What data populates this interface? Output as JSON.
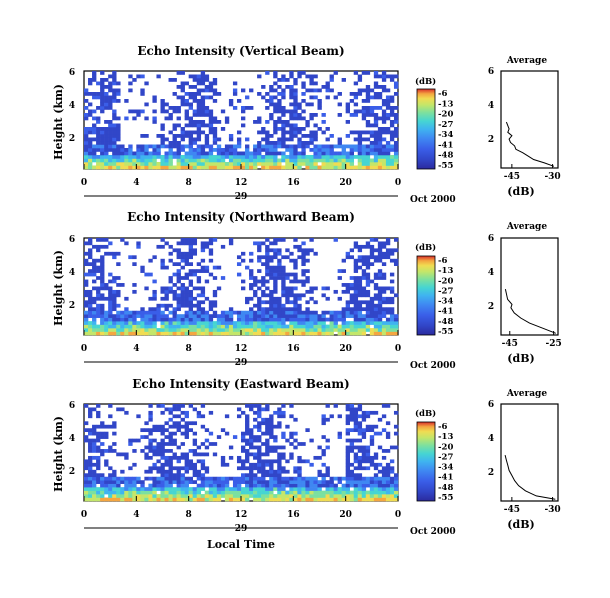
{
  "chart_data": [
    {
      "type": "heatmap",
      "title": "Echo Intensity (Vertical Beam)",
      "ylabel": "Height (km)",
      "xticks": [
        "0",
        "4",
        "8",
        "12",
        "16",
        "20",
        "0"
      ],
      "yticks": [
        "2",
        "4",
        "6"
      ],
      "date_day": "29",
      "date_month": "Oct 2000",
      "xlim": [
        0,
        24
      ],
      "ylim": [
        0.3,
        6
      ],
      "colorbar": {
        "title": "(dB)",
        "ticks": [
          "-6",
          "-13",
          "-20",
          "-27",
          "-34",
          "-41",
          "-48",
          "-55"
        ]
      },
      "average": {
        "title": "Average",
        "xlabel": "(dB)",
        "xticks": [
          "-45",
          "-30"
        ],
        "yticks": [
          "2",
          "4",
          "6"
        ],
        "xlim": [
          -49,
          -28
        ],
        "height_km": [
          0.4,
          0.6,
          0.8,
          1.0,
          1.2,
          1.4,
          1.6,
          1.8,
          2.0,
          2.2,
          2.4,
          2.6,
          3.0
        ],
        "db": [
          -29.5,
          -33,
          -37,
          -39,
          -41,
          -43.5,
          -44,
          -45.5,
          -46,
          -45,
          -46.5,
          -46,
          -47
        ]
      }
    },
    {
      "type": "heatmap",
      "title": "Echo Intensity (Northward Beam)",
      "ylabel": "Height (km)",
      "xticks": [
        "0",
        "4",
        "8",
        "12",
        "16",
        "20",
        "0"
      ],
      "yticks": [
        "2",
        "4",
        "6"
      ],
      "date_day": "29",
      "date_month": "Oct 2000",
      "xlim": [
        0,
        24
      ],
      "ylim": [
        0.3,
        6
      ],
      "colorbar": {
        "title": "(dB)",
        "ticks": [
          "-6",
          "-13",
          "-20",
          "-27",
          "-34",
          "-41",
          "-48",
          "-55"
        ]
      },
      "average": {
        "title": "Average",
        "xlabel": "(dB)",
        "xticks": [
          "-45",
          "-25"
        ],
        "yticks": [
          "2",
          "4",
          "6"
        ],
        "xlim": [
          -49,
          -23
        ],
        "height_km": [
          0.4,
          0.7,
          1.0,
          1.3,
          1.6,
          1.9,
          2.1,
          2.4,
          2.7,
          3.0
        ],
        "db": [
          -24,
          -30,
          -36,
          -40,
          -43,
          -44.5,
          -44,
          -46,
          -46.5,
          -47
        ]
      }
    },
    {
      "type": "heatmap",
      "title": "Echo Intensity (Eastward Beam)",
      "ylabel": "Height (km)",
      "xlabel": "Local Time",
      "xticks": [
        "0",
        "4",
        "8",
        "12",
        "16",
        "20",
        "0"
      ],
      "yticks": [
        "2",
        "4",
        "6"
      ],
      "date_day": "29",
      "date_month": "Oct 2000",
      "xlim": [
        0,
        24
      ],
      "ylim": [
        0.3,
        6
      ],
      "colorbar": {
        "title": "(dB)",
        "ticks": [
          "-6",
          "-13",
          "-20",
          "-27",
          "-34",
          "-41",
          "-48",
          "-55"
        ]
      },
      "average": {
        "title": "Average",
        "xlabel": "(dB)",
        "xticks": [
          "-45",
          "-30"
        ],
        "yticks": [
          "2",
          "4",
          "6"
        ],
        "xlim": [
          -49,
          -28
        ],
        "height_km": [
          0.4,
          0.6,
          0.9,
          1.2,
          1.5,
          1.8,
          2.1,
          2.4,
          2.7,
          3.0
        ],
        "db": [
          -29,
          -36,
          -40,
          -42.5,
          -44,
          -45,
          -46,
          -46.5,
          -47,
          -47.5
        ]
      }
    }
  ],
  "colorscale": [
    "#2b2a9e",
    "#3146c8",
    "#3a5ee8",
    "#3f87f2",
    "#3fb4f0",
    "#46d5d2",
    "#7be0a0",
    "#c3e66a",
    "#f0dc52",
    "#f4a640",
    "#ec6a3a",
    "#d82d2a"
  ]
}
